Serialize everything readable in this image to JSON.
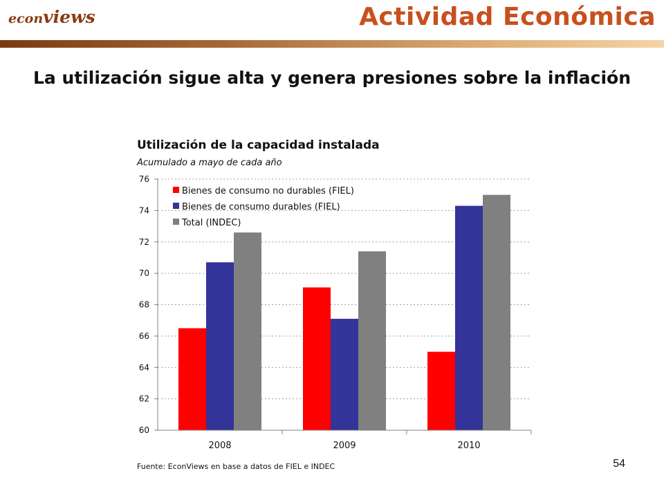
{
  "header": {
    "logo_prefix": "econ",
    "logo_suffix": "views",
    "section_title": "Actividad Económica"
  },
  "slide": {
    "title": "La utilización sigue alta y genera presiones sobre la inflación",
    "page_number": "54"
  },
  "chart_data": {
    "type": "bar",
    "title": "Utilización de la capacidad instalada",
    "subtitle": "Acumulado a mayo de cada año",
    "source": "Fuente: EconViews en base a datos de FIEL e INDEC",
    "categories": [
      "2008",
      "2009",
      "2010"
    ],
    "series": [
      {
        "name": "Bienes de consumo no durables (FIEL)",
        "color": "#ff0000",
        "values": [
          66.5,
          69.1,
          65.0
        ]
      },
      {
        "name": "Bienes de consumo durables (FIEL)",
        "color": "#333399",
        "values": [
          70.7,
          67.1,
          74.3
        ]
      },
      {
        "name": "Total (INDEC)",
        "color": "#808080",
        "values": [
          72.6,
          71.4,
          75.0
        ]
      }
    ],
    "ylim": [
      60,
      76
    ],
    "yticks": [
      60,
      62,
      64,
      66,
      68,
      70,
      72,
      74,
      76
    ],
    "grid": true,
    "legend_position": "top-left"
  }
}
